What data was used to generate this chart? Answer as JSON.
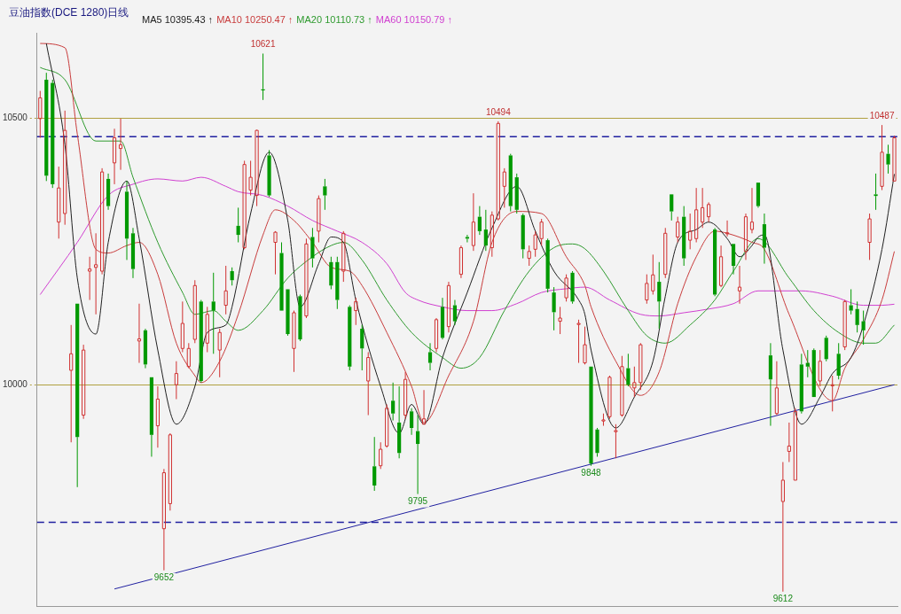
{
  "chart_data": {
    "type": "candlestick",
    "title": "豆油指数(DCE 1280)日线",
    "categories": [
      null,
      null,
      null,
      null,
      null,
      null,
      null,
      null,
      null,
      null,
      null,
      null,
      null,
      null,
      null,
      null,
      null,
      null,
      null,
      null,
      null,
      null,
      null,
      null,
      null,
      null,
      null,
      null,
      null,
      null,
      null,
      null,
      null,
      null,
      null,
      null,
      null,
      null,
      null,
      null,
      null,
      null,
      null,
      null,
      null,
      null,
      null,
      null,
      null,
      null,
      null,
      null,
      null,
      null,
      null,
      null,
      null,
      null,
      null,
      null,
      null,
      null,
      null,
      null,
      null,
      null,
      null,
      null,
      null,
      null,
      null,
      null,
      null,
      null,
      null,
      null,
      null,
      null,
      null,
      null,
      null,
      null,
      null,
      null,
      null,
      null,
      null,
      null,
      null,
      null,
      null,
      null,
      null,
      null,
      null,
      null,
      null,
      null,
      null,
      null,
      null,
      null,
      null,
      null,
      null,
      null,
      null,
      null,
      null,
      null,
      null,
      null,
      null,
      null,
      null,
      null,
      null,
      null,
      null,
      null,
      null,
      null,
      null,
      null,
      null,
      null,
      null,
      null,
      null,
      null,
      null,
      null,
      null,
      null,
      null,
      null,
      null,
      null,
      null
    ],
    "ohlc": [
      [
        10499,
        10551,
        10463,
        10538
      ],
      [
        10572,
        10585,
        10382,
        10392
      ],
      [
        10566,
        10572,
        10369,
        10376
      ],
      [
        10305,
        10409,
        10274,
        10369
      ],
      [
        10321,
        10514,
        10300,
        10477
      ],
      [
        10027,
        10112,
        9892,
        10058
      ],
      [
        10152,
        10152,
        9808,
        9902
      ],
      [
        9943,
        10075,
        9936,
        10065
      ],
      [
        10213,
        10240,
        10159,
        10217
      ],
      [
        10220,
        10284,
        10132,
        10225
      ],
      [
        10213,
        10406,
        10207,
        10399
      ],
      [
        10386,
        10396,
        10328,
        10335
      ],
      [
        10416,
        10480,
        10376,
        10463
      ],
      [
        10443,
        10499,
        10403,
        10450
      ],
      [
        10362,
        10382,
        10234,
        10274
      ],
      [
        10284,
        10294,
        10200,
        10217
      ],
      [
        10082,
        10152,
        10041,
        10086
      ],
      [
        10102,
        10105,
        10031,
        10038
      ],
      [
        10014,
        10014,
        9865,
        9906
      ],
      [
        9923,
        9997,
        9882,
        9973
      ],
      [
        9730,
        9842,
        9652,
        9835
      ],
      [
        9777,
        9909,
        9764,
        9906
      ],
      [
        10000,
        10044,
        9973,
        10021
      ],
      [
        10068,
        10156,
        10061,
        10115
      ],
      [
        10034,
        10078,
        10031,
        10068
      ],
      [
        10085,
        10196,
        10078,
        10186
      ],
      [
        10156,
        10159,
        10004,
        10007
      ],
      [
        10078,
        10146,
        10061,
        10132
      ],
      [
        10156,
        10210,
        10058,
        10139
      ],
      [
        10065,
        10105,
        10014,
        10098
      ],
      [
        10149,
        10223,
        10132,
        10176
      ],
      [
        10213,
        10220,
        10186,
        10196
      ],
      [
        10298,
        10332,
        10267,
        10281
      ],
      [
        10257,
        10420,
        10254,
        10413
      ],
      [
        10365,
        10420,
        10355,
        10389
      ],
      [
        10355,
        10478,
        10335,
        10477
      ],
      [
        10554,
        10621,
        10534,
        10552
      ],
      [
        10430,
        10440,
        10352,
        10355
      ],
      [
        10267,
        10288,
        10207,
        10286
      ],
      [
        10247,
        10267,
        10139,
        10139
      ],
      [
        10179,
        10179,
        10092,
        10095
      ],
      [
        10068,
        10139,
        10024,
        10135
      ],
      [
        10166,
        10169,
        10082,
        10085
      ],
      [
        10129,
        10274,
        10125,
        10264
      ],
      [
        10277,
        10294,
        10220,
        10237
      ],
      [
        10288,
        10355,
        10267,
        10349
      ],
      [
        10372,
        10386,
        10328,
        10355
      ],
      [
        10230,
        10240,
        10179,
        10186
      ],
      [
        10230,
        10240,
        10142,
        10159
      ],
      [
        10213,
        10288,
        10193,
        10284
      ],
      [
        10146,
        10149,
        10027,
        10034
      ],
      [
        10139,
        10163,
        10112,
        10156
      ],
      [
        10105,
        10112,
        10027,
        10068
      ],
      [
        10007,
        10061,
        9943,
        10051
      ],
      [
        9847,
        9902,
        9801,
        9811
      ],
      [
        9848,
        9892,
        9842,
        9879
      ],
      [
        9885,
        9963,
        9882,
        9956
      ],
      [
        9970,
        10004,
        9933,
        9946
      ],
      [
        9929,
        9997,
        9862,
        9872
      ],
      [
        9943,
        10024,
        9936,
        10010
      ],
      [
        9950,
        9956,
        9906,
        9919
      ],
      [
        9913,
        9943,
        9795,
        9889
      ],
      [
        9926,
        9990,
        9926,
        9936
      ],
      [
        10061,
        10078,
        10027,
        10041
      ],
      [
        10068,
        10125,
        10061,
        10122
      ],
      [
        10146,
        10163,
        10085,
        10088
      ],
      [
        10109,
        10193,
        10098,
        10186
      ],
      [
        10149,
        10159,
        10112,
        10119
      ],
      [
        10207,
        10261,
        10200,
        10257
      ],
      [
        10277,
        10281,
        10267,
        10274
      ],
      [
        10261,
        10359,
        10251,
        10305
      ],
      [
        10315,
        10335,
        10281,
        10288
      ],
      [
        10291,
        10328,
        10251,
        10261
      ],
      [
        10257,
        10325,
        10240,
        10318
      ],
      [
        10311,
        10494,
        10308,
        10490
      ],
      [
        10372,
        10406,
        10332,
        10399
      ],
      [
        10430,
        10433,
        10325,
        10335
      ],
      [
        10389,
        10396,
        10321,
        10328
      ],
      [
        10318,
        10321,
        10237,
        10254
      ],
      [
        10237,
        10261,
        10223,
        10250
      ],
      [
        10254,
        10288,
        10240,
        10281
      ],
      [
        10274,
        10311,
        10261,
        10305
      ],
      [
        10271,
        10274,
        10173,
        10180
      ],
      [
        10173,
        10183,
        10102,
        10136
      ],
      [
        10119,
        10146,
        10095,
        10125
      ],
      [
        10163,
        10207,
        10156,
        10200
      ],
      [
        10210,
        10213,
        10152,
        10156
      ],
      [
        10113,
        10122,
        10041,
        10115
      ],
      [
        10041,
        10109,
        10038,
        10075
      ],
      [
        10034,
        10034,
        9848,
        9852
      ],
      [
        9916,
        9919,
        9865,
        9872
      ],
      [
        9932,
        9946,
        9923,
        9934
      ],
      [
        9940,
        10017,
        9936,
        10014
      ],
      [
        9912,
        9926,
        9862,
        9914
      ],
      [
        9943,
        10054,
        9940,
        10034
      ],
      [
        10031,
        10058,
        9997,
        10000
      ],
      [
        9994,
        10034,
        9977,
        10004
      ],
      [
        10004,
        10078,
        9990,
        10075
      ],
      [
        10159,
        10207,
        10152,
        10190
      ],
      [
        10176,
        10244,
        10169,
        10206
      ],
      [
        10193,
        10230,
        10105,
        10156
      ],
      [
        10207,
        10294,
        10200,
        10284
      ],
      [
        10357,
        10357,
        10308,
        10325
      ],
      [
        10277,
        10315,
        10267,
        10305
      ],
      [
        10315,
        10335,
        10223,
        10237
      ],
      [
        10271,
        10321,
        10254,
        10288
      ],
      [
        10274,
        10369,
        10267,
        10328
      ],
      [
        10305,
        10369,
        10294,
        10332
      ],
      [
        10315,
        10342,
        10305,
        10338
      ],
      [
        10291,
        10294,
        10166,
        10169
      ],
      [
        10186,
        10261,
        10183,
        10240
      ],
      [
        10283,
        10308,
        10278,
        10285
      ],
      [
        10264,
        10264,
        10207,
        10223
      ],
      [
        10176,
        10223,
        10152,
        10183
      ],
      [
        10250,
        10321,
        10234,
        10315
      ],
      [
        10291,
        10369,
        10284,
        10305
      ],
      [
        10379,
        10379,
        10332,
        10335
      ],
      [
        10301,
        10321,
        10227,
        10257
      ],
      [
        10055,
        10078,
        9923,
        10010
      ],
      [
        9946,
        10044,
        9943,
        9994
      ],
      [
        9781,
        9855,
        9612,
        9821
      ],
      [
        9875,
        9929,
        9855,
        9885
      ],
      [
        9821,
        9956,
        9821,
        9950
      ],
      [
        10038,
        10058,
        9946,
        9950
      ],
      [
        10041,
        10065,
        10014,
        10034
      ],
      [
        10065,
        10068,
        9977,
        9977
      ],
      [
        10007,
        10065,
        9997,
        10044
      ],
      [
        10088,
        10092,
        10044,
        10048
      ],
      [
        9998,
        10017,
        9950,
        10000
      ],
      [
        10058,
        10078,
        10010,
        10017
      ],
      [
        10071,
        10159,
        10065,
        10156
      ],
      [
        10149,
        10179,
        10132,
        10139
      ],
      [
        10142,
        10156,
        10098,
        10112
      ],
      [
        10119,
        10139,
        10075,
        10102
      ],
      [
        10267,
        10321,
        10234,
        10311
      ],
      [
        10357,
        10396,
        10328,
        10354
      ],
      [
        10372,
        10487,
        10365,
        10436
      ],
      [
        10433,
        10450,
        10396,
        10413
      ],
      [
        10382,
        10467,
        10382,
        10463
      ]
    ],
    "colors": [
      "#d03030",
      "#009900",
      "#009900",
      "#d03030",
      "#d03030",
      "#d03030",
      "#009900",
      "#d03030",
      "#d03030",
      "#d03030",
      "#d03030",
      "#009900",
      "#d03030",
      "#d03030",
      "#009900",
      "#009900",
      "#d03030",
      "#009900",
      "#009900",
      "#d03030",
      "#d03030",
      "#d03030",
      "#d03030",
      "#d03030",
      "#d03030",
      "#d03030",
      "#009900",
      "#d03030",
      "#009900",
      "#d03030",
      "#d03030",
      "#009900",
      "#009900",
      "#d03030",
      "#d03030",
      "#d03030",
      "#009900",
      "#009900",
      "#d03030",
      "#009900",
      "#009900",
      "#d03030",
      "#009900",
      "#d03030",
      "#009900",
      "#d03030",
      "#009900",
      "#009900",
      "#009900",
      "#d03030",
      "#009900",
      "#d03030",
      "#009900",
      "#d03030",
      "#009900",
      "#d03030",
      "#d03030",
      "#009900",
      "#009900",
      "#d03030",
      "#009900",
      "#009900",
      "#d03030",
      "#009900",
      "#d03030",
      "#009900",
      "#d03030",
      "#009900",
      "#d03030",
      "#009900",
      "#d03030",
      "#009900",
      "#009900",
      "#d03030",
      "#d03030",
      "#d03030",
      "#009900",
      "#009900",
      "#009900",
      "#d03030",
      "#d03030",
      "#d03030",
      "#009900",
      "#009900",
      "#d03030",
      "#d03030",
      "#009900",
      "#d03030",
      "#d03030",
      "#009900",
      "#009900",
      "#d03030",
      "#d03030",
      "#d03030",
      "#d03030",
      "#009900",
      "#d03030",
      "#d03030",
      "#d03030",
      "#d03030",
      "#009900",
      "#d03030",
      "#009900",
      "#d03030",
      "#009900",
      "#d03030",
      "#d03030",
      "#d03030",
      "#d03030",
      "#009900",
      "#d03030",
      "#d03030",
      "#009900",
      "#d03030",
      "#d03030",
      "#d03030",
      "#009900",
      "#009900",
      "#009900",
      "#d03030",
      "#d03030",
      "#d03030",
      "#d03030",
      "#009900",
      "#009900",
      "#009900",
      "#d03030",
      "#009900",
      "#d03030",
      "#009900",
      "#d03030",
      "#009900",
      "#009900",
      "#009900",
      "#d03030",
      "#009900",
      "#d03030",
      "#009900",
      "#d03030"
    ],
    "series": [
      {
        "type": "line",
        "name": "MA5 10395.43 ↑",
        "color": "#202020",
        "values": [
          null,
          10640,
          null,
          null,
          10450,
          null,
          10200,
          null,
          null,
          10095,
          null,
          10267,
          null,
          null,
          10382,
          null,
          10274,
          null,
          null,
          10065,
          null,
          null,
          9926,
          null,
          null,
          9997,
          null,
          10098,
          null,
          null,
          10112,
          10146,
          null,
          null,
          10321,
          null,
          null,
          10436,
          null,
          null,
          10308,
          null,
          10146,
          null,
          null,
          10227,
          null,
          10277,
          null,
          10267,
          null,
          10159,
          null,
          null,
          null,
          9997,
          null,
          null,
          9909,
          null,
          9963,
          null,
          9926,
          null,
          null,
          10051,
          null,
          null,
          null,
          10173,
          null,
          null,
          null,
          10294,
          null,
          null,
          null,
          10372,
          null,
          null,
          10288,
          null,
          null,
          10213,
          null,
          null,
          null,
          10159,
          10132,
          10065,
          null,
          null,
          null,
          9919,
          null,
          null,
          9977,
          null,
          null,
          10044,
          null,
          10166,
          null,
          10267,
          null,
          null,
          10291,
          null,
          10305,
          null,
          null,
          10274,
          null,
          10240,
          null,
          10261,
          10277,
          10281,
          null,
          null,
          10065,
          null,
          null,
          9926,
          null,
          null,
          9977,
          null,
          10021,
          null,
          null,
          10051,
          null,
          10112,
          null,
          null,
          10254,
          null,
          10395
        ]
      },
      {
        "type": "line",
        "name": "MA10 10250.47 ↑",
        "color": "#c83c3c",
        "values": [
          10640,
          null,
          null,
          null,
          10632,
          null,
          10470,
          null,
          null,
          10254,
          null,
          10247,
          null,
          null,
          10261,
          null,
          10267,
          null,
          null,
          10207,
          null,
          null,
          10078,
          null,
          null,
          10017,
          10004,
          null,
          null,
          10044,
          null,
          null,
          10132,
          null,
          null,
          null,
          10281,
          null,
          10328,
          null,
          null,
          10308,
          null,
          null,
          10267,
          null,
          null,
          10220,
          null,
          null,
          10213,
          null,
          10186,
          null,
          null,
          null,
          10098,
          null,
          null,
          null,
          9997,
          null,
          9929,
          null,
          null,
          null,
          10017,
          null,
          null,
          null,
          10119,
          null,
          null,
          10267,
          null,
          null,
          null,
          10325,
          null,
          null,
          null,
          10321,
          null,
          null,
          null,
          10240,
          null,
          null,
          10186,
          10146,
          null,
          null,
          null,
          10044,
          null,
          null,
          null,
          9980,
          null,
          null,
          10024,
          null,
          null,
          10152,
          null,
          null,
          10240,
          null,
          null,
          10288,
          null,
          10284,
          null,
          null,
          null,
          10267,
          null,
          10254,
          null,
          null,
          null,
          10132,
          null,
          null,
          null,
          null,
          null,
          null,
          9970,
          null,
          10031,
          null,
          null,
          10085,
          null,
          null,
          10159,
          null,
          10250
        ]
      },
      {
        "type": "line",
        "name": "MA20 10110.73 ↑",
        "color": "#2e9a2e",
        "values": [
          10595,
          null,
          null,
          null,
          10572,
          null,
          null,
          null,
          null,
          10457,
          null,
          null,
          null,
          10457,
          null,
          10389,
          null,
          null,
          null,
          10267,
          null,
          null,
          null,
          10173,
          null,
          10132,
          null,
          null,
          10139,
          null,
          10119,
          null,
          10102,
          null,
          null,
          null,
          10139,
          null,
          null,
          null,
          10200,
          null,
          null,
          null,
          10240,
          null,
          null,
          10261,
          null,
          10267,
          null,
          null,
          10234,
          null,
          null,
          null,
          10159,
          null,
          null,
          null,
          10098,
          null,
          null,
          null,
          null,
          10051,
          null,
          null,
          10031,
          null,
          null,
          10051,
          null,
          null,
          null,
          10139,
          null,
          null,
          null,
          10213,
          null,
          null,
          null,
          10257,
          null,
          null,
          10264,
          null,
          10255,
          null,
          null,
          10213,
          null,
          null,
          null,
          10139,
          null,
          null,
          10092,
          null,
          null,
          10078,
          null,
          null,
          null,
          10112,
          null,
          null,
          null,
          10159,
          null,
          null,
          10213,
          null,
          null,
          null,
          10274,
          null,
          null,
          null,
          null,
          10200,
          null,
          null,
          null,
          10139,
          null,
          null,
          null,
          10098,
          null,
          null,
          null,
          10078,
          null,
          10078,
          null,
          null,
          10112
        ]
      },
      {
        "type": "line",
        "name": "MA60 10150.79 ↑",
        "color": "#d040d0",
        "values": [
          10169,
          null,
          null,
          null,
          null,
          null,
          10267,
          null,
          null,
          null,
          null,
          10355,
          null,
          null,
          null,
          10376,
          null,
          null,
          null,
          10386,
          null,
          null,
          null,
          10382,
          null,
          null,
          10389,
          null,
          null,
          null,
          10372,
          null,
          10362,
          null,
          null,
          null,
          10355,
          null,
          null,
          null,
          10335,
          null,
          null,
          null,
          10308,
          null,
          null,
          null,
          10288,
          null,
          null,
          null,
          10267,
          null,
          null,
          null,
          10227,
          null,
          null,
          10173,
          null,
          10159,
          null,
          null,
          null,
          10146,
          null,
          null,
          null,
          10139,
          null,
          null,
          null,
          10139,
          null,
          null,
          null,
          10152,
          null,
          null,
          null,
          10173,
          null,
          null,
          null,
          10180,
          null,
          null,
          10183,
          null,
          null,
          null,
          10159,
          null,
          null,
          null,
          null,
          10132,
          null,
          null,
          10129,
          null,
          null,
          null,
          10135,
          null,
          null,
          null,
          10142,
          null,
          null,
          null,
          10152,
          null,
          null,
          null,
          10176,
          null,
          null,
          null,
          null,
          null,
          null,
          10176,
          null,
          null,
          null,
          null,
          10166,
          null,
          null,
          null,
          null,
          10149,
          null,
          null,
          10149,
          null,
          10151
        ]
      },
      {
        "type": "line",
        "color": "#2020a0",
        "values": [
          null,
          null,
          null,
          null,
          null,
          null,
          null,
          null,
          null,
          null,
          null,
          null,
          9617,
          null,
          null,
          null,
          null,
          null,
          null,
          null,
          null,
          null,
          null,
          null,
          null,
          null,
          null,
          null,
          null,
          null,
          null,
          null,
          null,
          null,
          null,
          null,
          null,
          null,
          null,
          null,
          null,
          null,
          null,
          null,
          null,
          null,
          null,
          null,
          null,
          null,
          null,
          null,
          null,
          null,
          null,
          null,
          null,
          null,
          null,
          null,
          null,
          null,
          null,
          null,
          null,
          null,
          null,
          null,
          null,
          null,
          null,
          null,
          null,
          null,
          null,
          null,
          null,
          null,
          null,
          null,
          null,
          null,
          null,
          null,
          null,
          null,
          null,
          null,
          null,
          null,
          null,
          null,
          null,
          null,
          null,
          null,
          null,
          null,
          null,
          null,
          null,
          null,
          null,
          null,
          null,
          null,
          null,
          null,
          null,
          null,
          null,
          null,
          null,
          null,
          null,
          null,
          null,
          null,
          null,
          null,
          null,
          null,
          null,
          null,
          null,
          null,
          null,
          null,
          null,
          null,
          null,
          null,
          null,
          null,
          null,
          null,
          null,
          null,
          10000
        ]
      }
    ],
    "ylim": [
      9585,
      10660
    ],
    "yticks": [
      10000,
      10500
    ],
    "grid": "y",
    "legend": "top",
    "tick_labels": "y",
    "marker": "none",
    "line_style": "solid",
    "ref_lines": [
      {
        "axis": "y",
        "value": 10465,
        "color": "#2020a0",
        "line_style": "dashed"
      },
      {
        "axis": "y",
        "value": 9742,
        "color": "#2020a0",
        "line_style": "dashed"
      }
    ],
    "annotations": [
      {
        "text": "10621",
        "y": 10621
      },
      {
        "text": "10494",
        "y": 10494
      },
      {
        "text": "10487",
        "y": 10487
      },
      {
        "text": "9795",
        "y": 9795
      },
      {
        "text": "9848",
        "y": 9848
      },
      {
        "text": "9652",
        "y": 9652
      },
      {
        "text": "9612",
        "y": 9612
      }
    ]
  }
}
